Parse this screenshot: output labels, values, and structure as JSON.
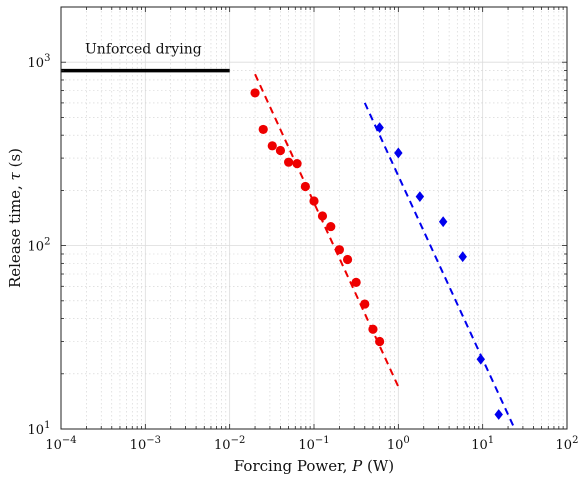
{
  "chart_data": {
    "type": "scatter",
    "xlabel_text": "Forcing Power, ",
    "xlabel_var": "P",
    "xlabel_unit": " (W)",
    "ylabel_text": "Release time, ",
    "ylabel_var": "τ",
    "ylabel_unit": " (s)",
    "x_scale": "log",
    "y_scale": "log",
    "xlim": [
      0.0001,
      100
    ],
    "ylim": [
      10,
      2000
    ],
    "grid": true,
    "x_ticks": [
      {
        "value": 0.0001,
        "base": "10",
        "exp": "−4"
      },
      {
        "value": 0.001,
        "base": "10",
        "exp": "−3"
      },
      {
        "value": 0.01,
        "base": "10",
        "exp": "−2"
      },
      {
        "value": 0.1,
        "base": "10",
        "exp": "−1"
      },
      {
        "value": 1,
        "base": "10",
        "exp": "0"
      },
      {
        "value": 10,
        "base": "10",
        "exp": "1"
      },
      {
        "value": 100,
        "base": "10",
        "exp": "2"
      }
    ],
    "y_ticks": [
      {
        "value": 10,
        "base": "10",
        "exp": "1"
      },
      {
        "value": 100,
        "base": "10",
        "exp": "2"
      },
      {
        "value": 1000,
        "base": "10",
        "exp": "3"
      }
    ],
    "reference_line": {
      "label": "Unforced drying",
      "x": [
        0.0001,
        0.01
      ],
      "y": 900,
      "color": "#000000"
    },
    "series": [
      {
        "marker": "circle",
        "color": "#ee0000",
        "points": [
          {
            "x": 0.02,
            "y": 680
          },
          {
            "x": 0.025,
            "y": 430
          },
          {
            "x": 0.032,
            "y": 350
          },
          {
            "x": 0.04,
            "y": 330
          },
          {
            "x": 0.05,
            "y": 285
          },
          {
            "x": 0.063,
            "y": 280
          },
          {
            "x": 0.079,
            "y": 210
          },
          {
            "x": 0.1,
            "y": 175
          },
          {
            "x": 0.126,
            "y": 145
          },
          {
            "x": 0.158,
            "y": 127
          },
          {
            "x": 0.2,
            "y": 95
          },
          {
            "x": 0.25,
            "y": 84
          },
          {
            "x": 0.316,
            "y": 63
          },
          {
            "x": 0.4,
            "y": 48
          },
          {
            "x": 0.5,
            "y": 35
          },
          {
            "x": 0.6,
            "y": 30
          }
        ],
        "fit": {
          "x": [
            0.02,
            1.0
          ],
          "y": [
            860,
            17
          ]
        }
      },
      {
        "marker": "diamond",
        "color": "#0000ee",
        "points": [
          {
            "x": 0.6,
            "y": 440
          },
          {
            "x": 1.0,
            "y": 320
          },
          {
            "x": 1.8,
            "y": 185
          },
          {
            "x": 3.4,
            "y": 135
          },
          {
            "x": 5.8,
            "y": 87
          },
          {
            "x": 9.5,
            "y": 24
          },
          {
            "x": 15.5,
            "y": 12
          }
        ],
        "fit": {
          "x": [
            0.4,
            24
          ],
          "y": [
            600,
            10
          ]
        }
      }
    ]
  }
}
